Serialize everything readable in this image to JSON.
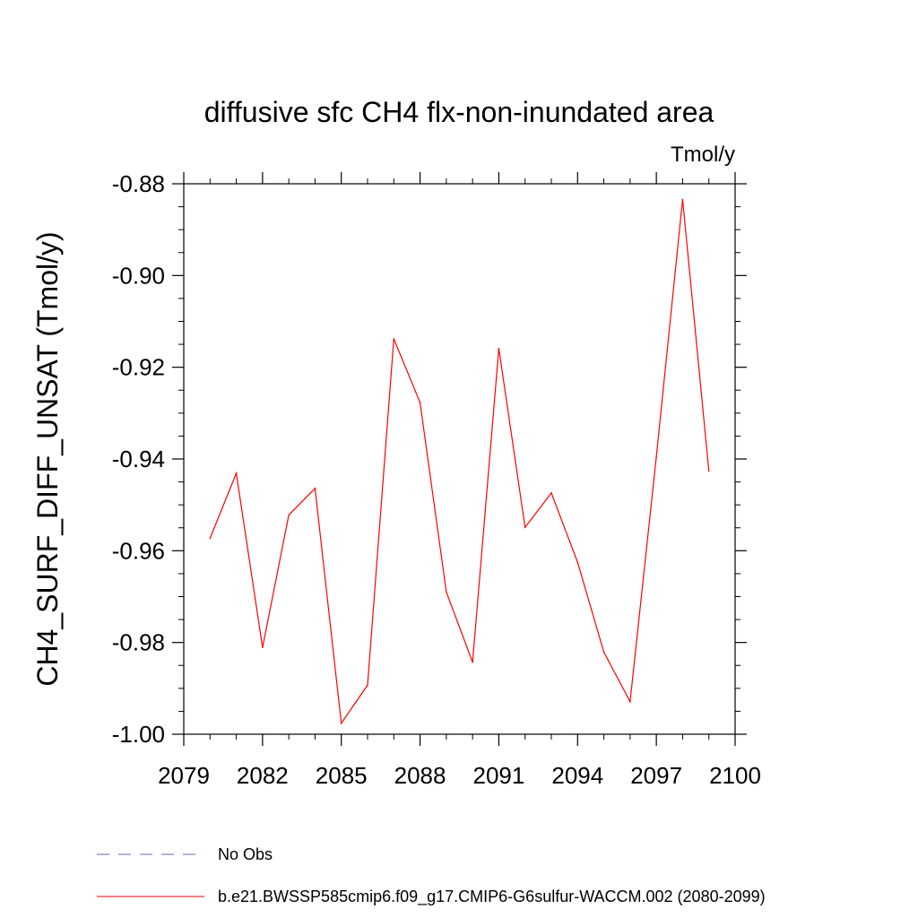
{
  "chart_data": {
    "type": "line",
    "title": "diffusive sfc CH4 flx-non-inundated area",
    "units": "Tmol/y",
    "ylabel": "CH4_SURF_DIFF_UNSAT  (Tmol/y)",
    "xlabel": "",
    "xlim": [
      2079,
      2100
    ],
    "ylim": [
      -1.0,
      -0.88
    ],
    "x_ticks": [
      2079,
      2082,
      2085,
      2088,
      2091,
      2094,
      2097,
      2100
    ],
    "x_tick_labels": [
      "2079",
      "2082",
      "2085",
      "2088",
      "2091",
      "2094",
      "2097",
      "2100"
    ],
    "y_ticks": [
      -1.0,
      -0.98,
      -0.96,
      -0.94,
      -0.92,
      -0.9,
      -0.88
    ],
    "y_tick_labels": [
      "-1.00",
      "-0.98",
      "-0.96",
      "-0.94",
      "-0.92",
      "-0.90",
      "-0.88"
    ],
    "grid": false,
    "legend_position": "bottom",
    "series": [
      {
        "name": "b.e21.BWSSP585cmip6.f09_g17.CMIP6-G6sulfur-WACCM.002 (2080-2099)",
        "color": "#ff0000",
        "style": "solid",
        "x": [
          2080,
          2081,
          2082,
          2083,
          2084,
          2085,
          2086,
          2087,
          2088,
          2089,
          2090,
          2091,
          2092,
          2093,
          2094,
          2095,
          2096,
          2097,
          2098,
          2099
        ],
        "y": [
          -0.9573,
          -0.9431,
          -0.9811,
          -0.9522,
          -0.9464,
          -0.9976,
          -0.9893,
          -0.9138,
          -0.9277,
          -0.969,
          -0.9843,
          -0.9159,
          -0.9549,
          -0.9474,
          -0.9625,
          -0.9821,
          -0.9929,
          -0.9395,
          -0.8834,
          -0.9426
        ]
      }
    ],
    "legend": [
      {
        "label": "No Obs",
        "color": "#7060a8",
        "style": "dashed"
      },
      {
        "label": "b.e21.BWSSP585cmip6.f09_g17.CMIP6-G6sulfur-WACCM.002 (2080-2099)",
        "color": "#ff0000",
        "style": "solid"
      }
    ]
  }
}
